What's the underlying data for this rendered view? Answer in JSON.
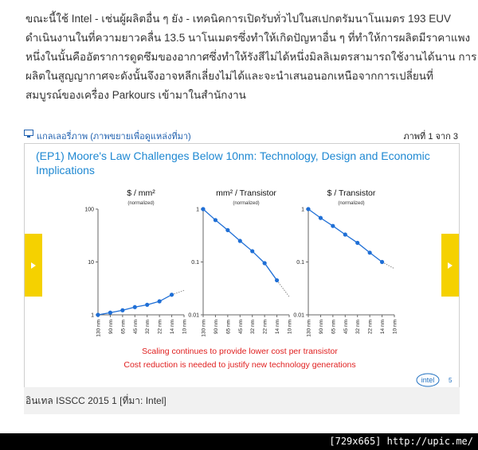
{
  "article": {
    "lines": [
      "ขณะนี้ใช้ Intel - เช่นผู้ผลิตอื่น ๆ ยัง - เทคนิคการเปิดรับทั่วไปในสเปกตรัมนาโนเมตร 193 EUV",
      "ดำเนินงานในที่ความยาวคลื่น 13.5 นาโนเมตรซึ่งทำให้เกิดปัญหาอื่น ๆ ที่ทำให้การผลิตมีราคาแพง",
      "หนึ่งในนั้นคืออัตราการดูดซึมของอากาศซึ่งทำให้รังสีไม่ได้หนึ่งมิลลิเมตรสามารถใช้งานได้นาน การ",
      "ผลิตในสูญญากาศจะดังนั้นจึงอาจหลีกเลี่ยงไม่ได้และจะนำเสนอนอกเหนือจากการเปลี่ยนที่",
      "สมบูรณ์ของเครื่อง Parkours เข้ามาในสำนักงาน"
    ]
  },
  "gallery": {
    "label": "แกลเลอรี่ภาพ (ภาพขยายเพื่อดูแหล่งที่มา)",
    "counter": "ภาพที่ 1 จาก 3",
    "caption": "อินเทล ISSCC 2015 1 [ที่มา: Intel]"
  },
  "slide": {
    "title": "(EP1) Moore's Law Challenges Below 10nm: Technology, Design and Economic Implications",
    "notes": [
      "Scaling continues to provide lower cost per transistor",
      "Cost reduction is needed to justify new technology generations"
    ],
    "logo": "intel",
    "page": "5",
    "charts": [
      {
        "type": "line",
        "title": "$ / mm²",
        "subtitle": "(normalized)",
        "categories": [
          "130 nm",
          "90 nm",
          "65 nm",
          "45 nm",
          "32 nm",
          "22 nm",
          "14 nm",
          "10 nm"
        ],
        "values": [
          1,
          1.1,
          1.22,
          1.4,
          1.55,
          1.8,
          2.4,
          null
        ],
        "projected_values": [
          null,
          null,
          null,
          null,
          null,
          null,
          2.4,
          2.9
        ],
        "color": "#1f6fd6",
        "log_scale": true,
        "ylim": [
          1,
          100
        ],
        "yticks": [
          1,
          10,
          100
        ]
      },
      {
        "type": "line",
        "title": "mm² / Transistor",
        "subtitle": "(normalized)",
        "categories": [
          "130 nm",
          "90 nm",
          "65 nm",
          "45 nm",
          "32 nm",
          "22 nm",
          "14 nm",
          "10 nm"
        ],
        "values": [
          1,
          0.62,
          0.4,
          0.25,
          0.16,
          0.095,
          0.045,
          null
        ],
        "projected_values": [
          null,
          null,
          null,
          null,
          null,
          null,
          0.045,
          0.022
        ],
        "color": "#1f6fd6",
        "log_scale": true,
        "ylim": [
          0.01,
          1
        ],
        "yticks": [
          0.01,
          0.1,
          1
        ]
      },
      {
        "type": "line",
        "title": "$ / Transistor",
        "subtitle": "(normalized)",
        "categories": [
          "130 nm",
          "90 nm",
          "65 nm",
          "45 nm",
          "32 nm",
          "22 nm",
          "14 nm",
          "10 nm"
        ],
        "values": [
          1,
          0.68,
          0.48,
          0.33,
          0.23,
          0.15,
          0.1,
          null
        ],
        "projected_values": [
          null,
          null,
          null,
          null,
          null,
          null,
          0.1,
          0.075
        ],
        "color": "#1f6fd6",
        "log_scale": true,
        "ylim": [
          0.01,
          1
        ],
        "yticks": [
          0.01,
          0.1,
          1
        ]
      }
    ]
  },
  "watermark": "[729x665] http://upic.me/"
}
